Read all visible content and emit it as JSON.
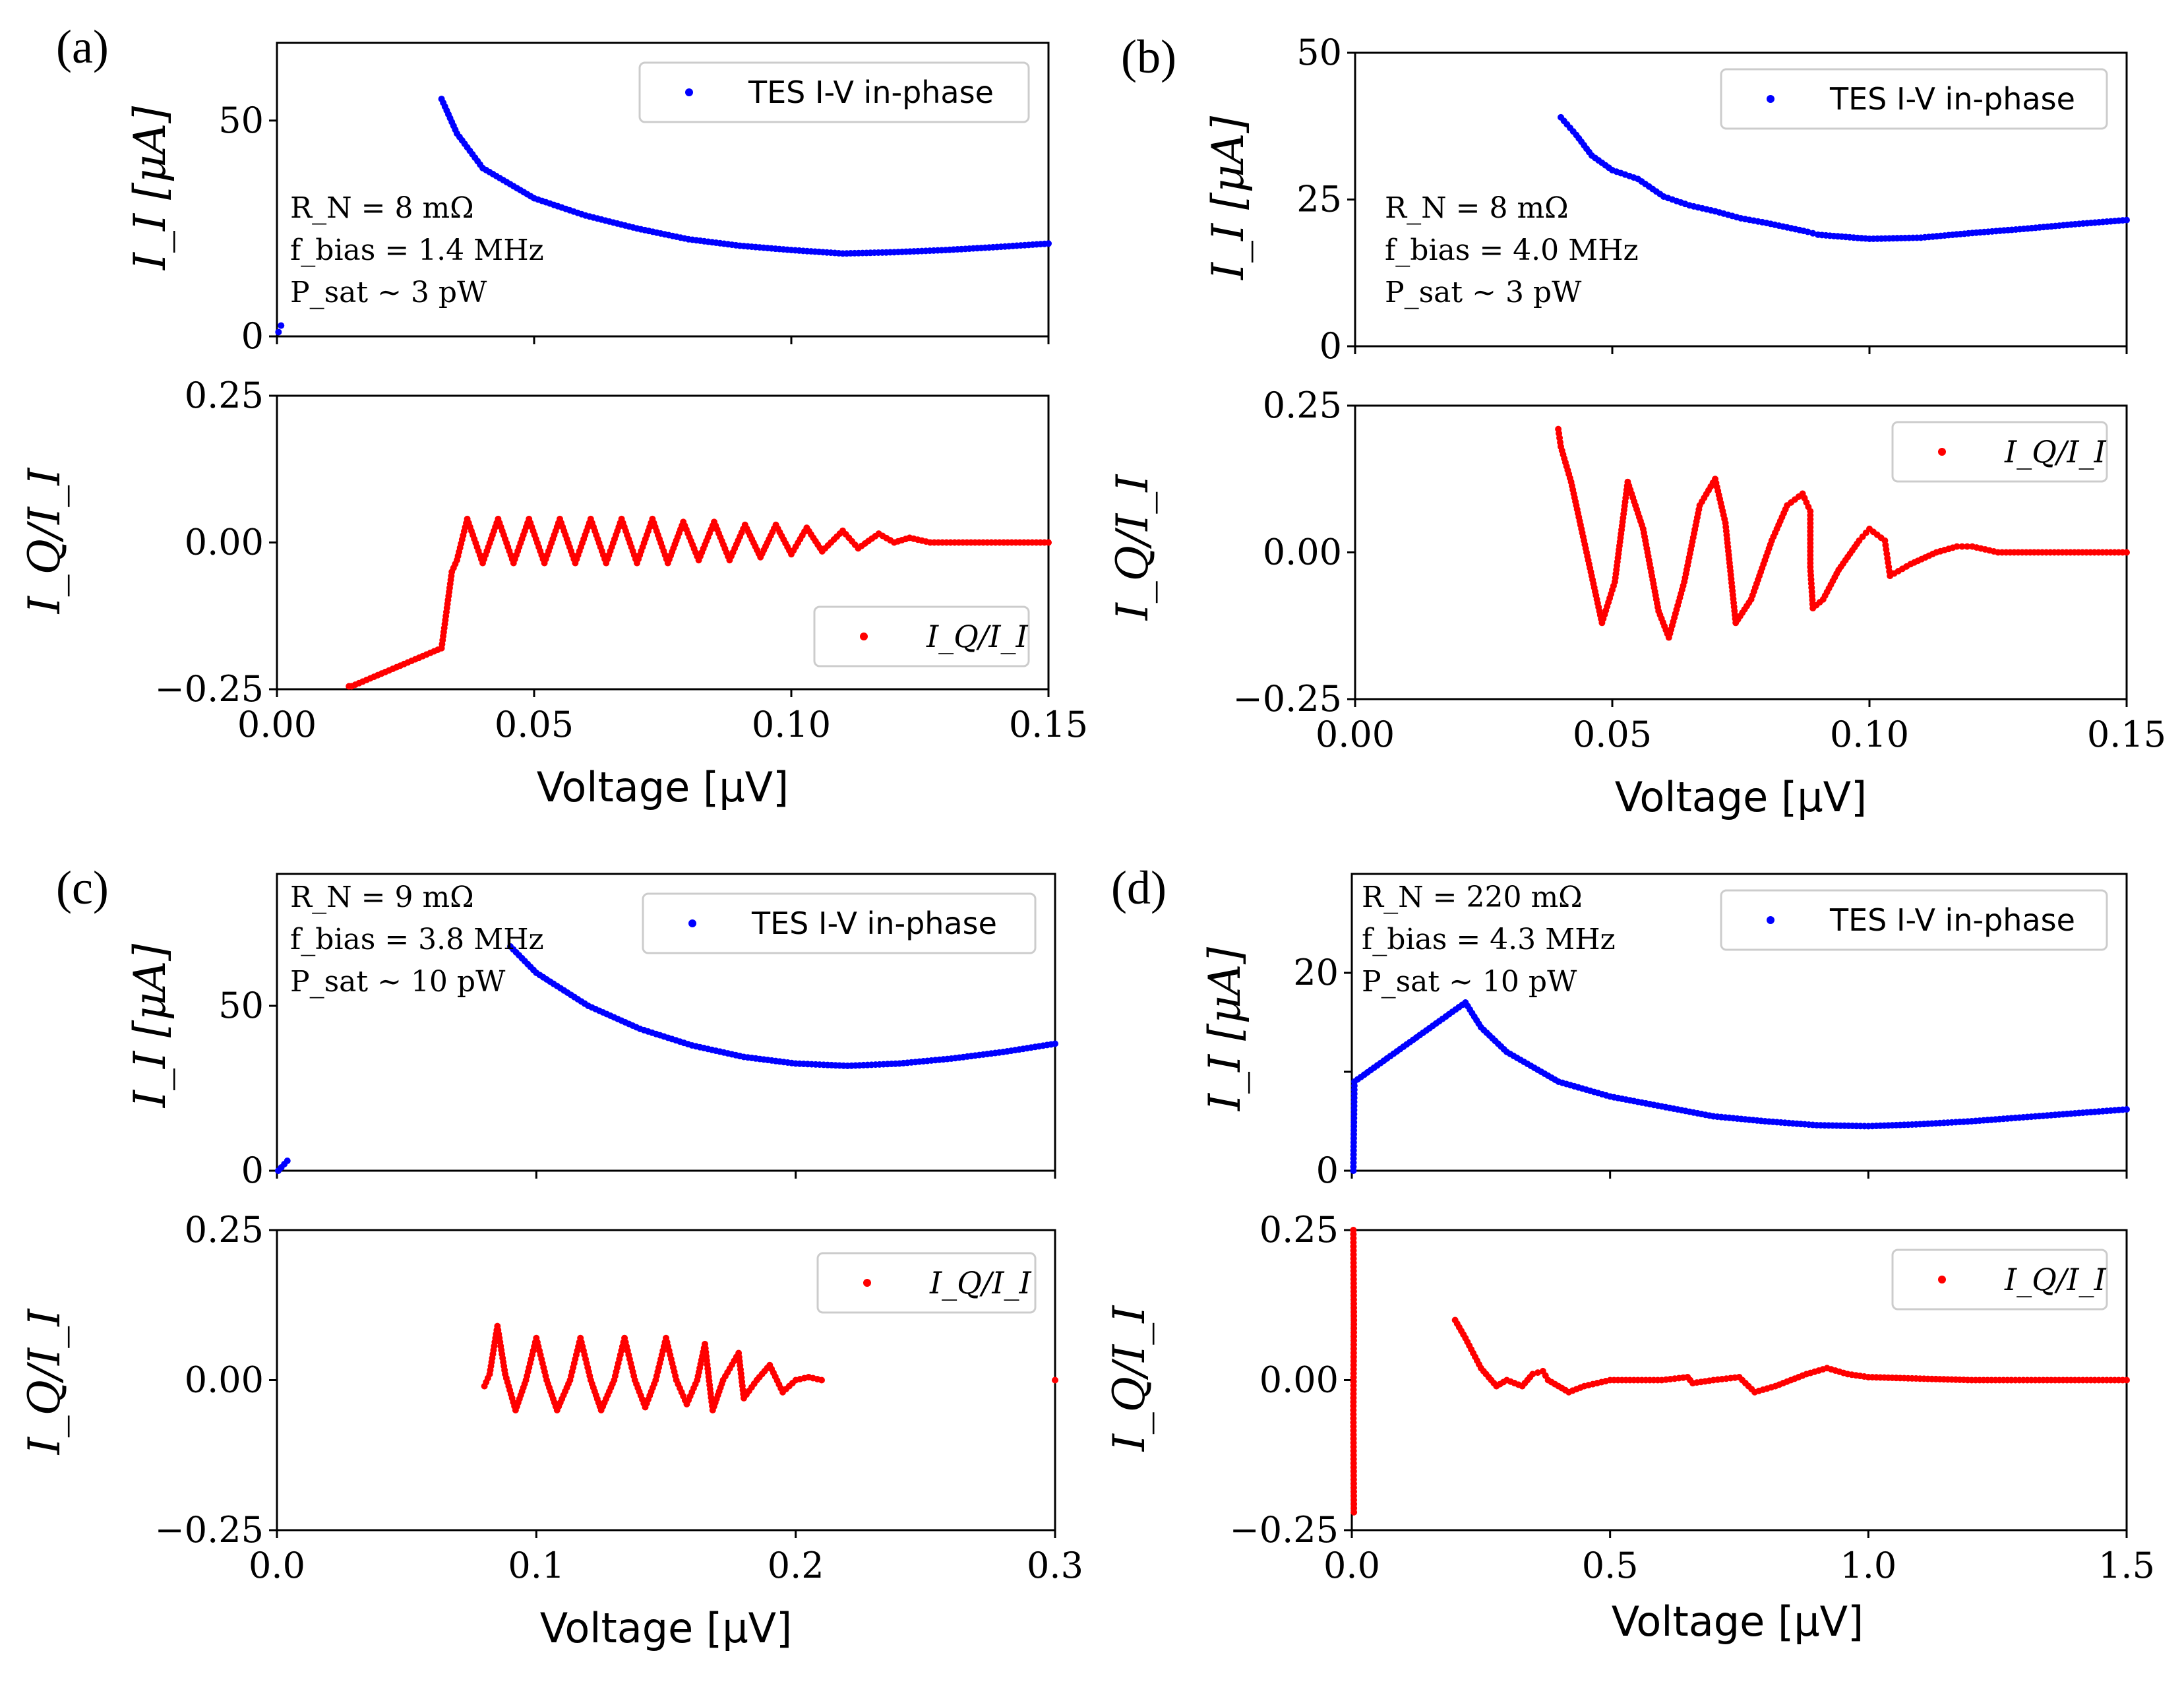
{
  "figure": {
    "panels": [
      {
        "label": "(a)",
        "annotation": [
          "R_N = 8 mΩ",
          "f_bias = 1.4 MHz",
          "P_sat ~ 3 pW"
        ],
        "legend_top": "TES I-V in-phase",
        "legend_bottom": "I_Q/I_I",
        "xlabel": "Voltage [μV]",
        "ylabel_top": "I_I [μA]",
        "ylabel_bottom": "I_Q/I_I"
      },
      {
        "label": "(b)",
        "annotation": [
          "R_N = 8 mΩ",
          "f_bias = 4.0 MHz",
          "P_sat ~ 3 pW"
        ],
        "legend_top": "TES I-V in-phase",
        "legend_bottom": "I_Q/I_I",
        "xlabel": "Voltage [μV]",
        "ylabel_top": "I_I [μA]",
        "ylabel_bottom": "I_Q/I_I"
      },
      {
        "label": "(c)",
        "annotation": [
          "R_N = 9 mΩ",
          "f_bias = 3.8 MHz",
          "P_sat ~ 10 pW"
        ],
        "legend_top": "TES I-V in-phase",
        "legend_bottom": "I_Q/I_I",
        "xlabel": "Voltage [μV]",
        "ylabel_top": "I_I [μA]",
        "ylabel_bottom": "I_Q/I_I"
      },
      {
        "label": "(d)",
        "annotation": [
          "R_N = 220 mΩ",
          "f_bias = 4.3 MHz",
          "P_sat ~ 10 pW"
        ],
        "legend_top": "TES I-V in-phase",
        "legend_bottom": "I_Q/I_I",
        "xlabel": "Voltage [μV]",
        "ylabel_top": "I_I [μA]",
        "ylabel_bottom": "I_Q/I_I"
      }
    ],
    "colors": {
      "in_phase": "#0000ff",
      "ratio": "#ff0000",
      "axis": "#000000",
      "legend_border": "#cccccc"
    }
  },
  "chart_data": [
    {
      "panel": "(a)",
      "type": "scatter",
      "top": {
        "series": "TES I-V in-phase",
        "xlim": [
          0,
          0.15
        ],
        "ylim": [
          0,
          68
        ],
        "yticks": [
          0,
          50
        ],
        "ytick_labels": [
          "0",
          "50"
        ],
        "points": [
          [
            0.0003,
            1
          ],
          [
            0.0008,
            2.5
          ],
          [
            0.032,
            55
          ],
          [
            0.035,
            47
          ],
          [
            0.04,
            39
          ],
          [
            0.05,
            32
          ],
          [
            0.06,
            28
          ],
          [
            0.07,
            25
          ],
          [
            0.08,
            22.5
          ],
          [
            0.09,
            21
          ],
          [
            0.1,
            20
          ],
          [
            0.11,
            19.2
          ],
          [
            0.12,
            19.5
          ],
          [
            0.13,
            20
          ],
          [
            0.14,
            20.7
          ],
          [
            0.15,
            21.5
          ]
        ]
      },
      "bottom": {
        "series": "I_Q/I_I",
        "xlim": [
          0,
          0.15
        ],
        "ylim": [
          -0.25,
          0.25
        ],
        "yticks": [
          -0.25,
          0,
          0.25
        ],
        "ytick_labels": [
          "−0.25",
          "0.00",
          "0.25"
        ],
        "xticks": [
          0,
          0.05,
          0.1,
          0.15
        ],
        "xtick_labels": [
          "0.00",
          "0.05",
          "0.10",
          "0.15"
        ],
        "points": [
          [
            0.014,
            -0.245
          ],
          [
            0.0145,
            -0.245
          ],
          [
            0.032,
            -0.18
          ],
          [
            0.034,
            -0.05
          ],
          [
            0.035,
            -0.03
          ],
          [
            0.037,
            0.04
          ],
          [
            0.04,
            -0.035
          ],
          [
            0.043,
            0.04
          ],
          [
            0.046,
            -0.035
          ],
          [
            0.049,
            0.04
          ],
          [
            0.052,
            -0.035
          ],
          [
            0.055,
            0.04
          ],
          [
            0.058,
            -0.035
          ],
          [
            0.061,
            0.04
          ],
          [
            0.064,
            -0.035
          ],
          [
            0.067,
            0.04
          ],
          [
            0.07,
            -0.035
          ],
          [
            0.073,
            0.04
          ],
          [
            0.076,
            -0.035
          ],
          [
            0.079,
            0.035
          ],
          [
            0.082,
            -0.03
          ],
          [
            0.085,
            0.035
          ],
          [
            0.088,
            -0.03
          ],
          [
            0.091,
            0.03
          ],
          [
            0.094,
            -0.025
          ],
          [
            0.097,
            0.03
          ],
          [
            0.1,
            -0.02
          ],
          [
            0.103,
            0.025
          ],
          [
            0.106,
            -0.015
          ],
          [
            0.11,
            0.02
          ],
          [
            0.113,
            -0.01
          ],
          [
            0.117,
            0.015
          ],
          [
            0.12,
            0.0
          ],
          [
            0.123,
            0.008
          ],
          [
            0.127,
            0.0
          ],
          [
            0.15,
            0.0
          ]
        ]
      }
    },
    {
      "panel": "(b)",
      "type": "scatter",
      "top": {
        "series": "TES I-V in-phase",
        "xlim": [
          0,
          0.15
        ],
        "ylim": [
          0,
          50
        ],
        "yticks": [
          0,
          25,
          50
        ],
        "ytick_labels": [
          "0",
          "25",
          "50"
        ],
        "points": [
          [
            0.04,
            39
          ],
          [
            0.043,
            36
          ],
          [
            0.046,
            32.5
          ],
          [
            0.05,
            30
          ],
          [
            0.055,
            28.5
          ],
          [
            0.06,
            25.5
          ],
          [
            0.065,
            24
          ],
          [
            0.07,
            23
          ],
          [
            0.075,
            21.8
          ],
          [
            0.08,
            21
          ],
          [
            0.088,
            19.5
          ],
          [
            0.09,
            19
          ],
          [
            0.1,
            18.3
          ],
          [
            0.11,
            18.5
          ],
          [
            0.12,
            19.3
          ],
          [
            0.13,
            20
          ],
          [
            0.14,
            20.8
          ],
          [
            0.15,
            21.5
          ]
        ]
      },
      "bottom": {
        "series": "I_Q/I_I",
        "xlim": [
          0,
          0.15
        ],
        "ylim": [
          -0.25,
          0.25
        ],
        "yticks": [
          -0.25,
          0,
          0.25
        ],
        "ytick_labels": [
          "−0.25",
          "0.00",
          "0.25"
        ],
        "xticks": [
          0,
          0.05,
          0.1,
          0.15
        ],
        "xtick_labels": [
          "0.00",
          "0.05",
          "0.10",
          "0.15"
        ],
        "points": [
          [
            0.0395,
            0.21
          ],
          [
            0.04,
            0.18
          ],
          [
            0.042,
            0.12
          ],
          [
            0.045,
            0.0
          ],
          [
            0.048,
            -0.12
          ],
          [
            0.0505,
            -0.05
          ],
          [
            0.053,
            0.12
          ],
          [
            0.056,
            0.04
          ],
          [
            0.059,
            -0.1
          ],
          [
            0.061,
            -0.145
          ],
          [
            0.064,
            -0.05
          ],
          [
            0.067,
            0.08
          ],
          [
            0.07,
            0.125
          ],
          [
            0.072,
            0.05
          ],
          [
            0.074,
            -0.12
          ],
          [
            0.077,
            -0.08
          ],
          [
            0.081,
            0.02
          ],
          [
            0.084,
            0.08
          ],
          [
            0.087,
            0.1
          ],
          [
            0.0885,
            0.07
          ],
          [
            0.0885,
            -0.025
          ],
          [
            0.089,
            -0.095
          ],
          [
            0.091,
            -0.08
          ],
          [
            0.094,
            -0.03
          ],
          [
            0.098,
            0.02
          ],
          [
            0.1,
            0.04
          ],
          [
            0.103,
            0.02
          ],
          [
            0.104,
            -0.04
          ],
          [
            0.108,
            -0.02
          ],
          [
            0.113,
            0.0
          ],
          [
            0.117,
            0.01
          ],
          [
            0.12,
            0.01
          ],
          [
            0.125,
            0.0
          ],
          [
            0.15,
            0.0
          ]
        ]
      }
    },
    {
      "panel": "(c)",
      "type": "scatter",
      "top": {
        "series": "TES I-V in-phase",
        "xlim": [
          0,
          0.3
        ],
        "ylim": [
          0,
          90
        ],
        "yticks": [
          0,
          50
        ],
        "ytick_labels": [
          "0",
          "50"
        ],
        "points": [
          [
            0.0005,
            0
          ],
          [
            0.004,
            3
          ],
          [
            0.09,
            68
          ],
          [
            0.1,
            60
          ],
          [
            0.12,
            50
          ],
          [
            0.14,
            43
          ],
          [
            0.16,
            38
          ],
          [
            0.18,
            34.5
          ],
          [
            0.2,
            32.5
          ],
          [
            0.22,
            31.8
          ],
          [
            0.24,
            32.5
          ],
          [
            0.26,
            34
          ],
          [
            0.28,
            36
          ],
          [
            0.3,
            38.5
          ]
        ]
      },
      "bottom": {
        "series": "I_Q/I_I",
        "xlim": [
          0,
          0.3
        ],
        "ylim": [
          -0.25,
          0.25
        ],
        "yticks": [
          -0.25,
          0,
          0.25
        ],
        "ytick_labels": [
          "−0.25",
          "0.00",
          "0.25"
        ],
        "xticks": [
          0,
          0.1,
          0.2,
          0.3
        ],
        "xtick_labels": [
          "0.0",
          "0.1",
          "0.2",
          "0.3"
        ],
        "points": [
          [
            0.08,
            -0.01
          ],
          [
            0.082,
            0.01
          ],
          [
            0.085,
            0.09
          ],
          [
            0.088,
            0.01
          ],
          [
            0.092,
            -0.05
          ],
          [
            0.096,
            0.0
          ],
          [
            0.1,
            0.07
          ],
          [
            0.104,
            0.0
          ],
          [
            0.108,
            -0.05
          ],
          [
            0.113,
            0.0
          ],
          [
            0.117,
            0.07
          ],
          [
            0.121,
            0.0
          ],
          [
            0.125,
            -0.05
          ],
          [
            0.13,
            0.0
          ],
          [
            0.134,
            0.07
          ],
          [
            0.138,
            0.0
          ],
          [
            0.142,
            -0.045
          ],
          [
            0.146,
            0.0
          ],
          [
            0.15,
            0.07
          ],
          [
            0.154,
            0.0
          ],
          [
            0.158,
            -0.04
          ],
          [
            0.162,
            0.0
          ],
          [
            0.165,
            0.06
          ],
          [
            0.167,
            -0.015
          ],
          [
            0.168,
            -0.05
          ],
          [
            0.172,
            0.0
          ],
          [
            0.178,
            0.045
          ],
          [
            0.18,
            -0.03
          ],
          [
            0.185,
            0.0
          ],
          [
            0.19,
            0.025
          ],
          [
            0.195,
            -0.02
          ],
          [
            0.2,
            0.0
          ],
          [
            0.205,
            0.005
          ],
          [
            0.21,
            0.0
          ],
          [
            0.3,
            0.0
          ]
        ]
      }
    },
    {
      "panel": "(d)",
      "type": "scatter",
      "top": {
        "series": "TES I-V in-phase",
        "xlim": [
          0,
          1.5
        ],
        "ylim": [
          0,
          30
        ],
        "yticks": [
          0,
          10,
          20
        ],
        "ytick_labels": [
          "0",
          "",
          "20"
        ],
        "points": [
          [
            0.003,
            0
          ],
          [
            0.005,
            9
          ],
          [
            0.22,
            17
          ],
          [
            0.25,
            14.5
          ],
          [
            0.3,
            12
          ],
          [
            0.4,
            9
          ],
          [
            0.5,
            7.5
          ],
          [
            0.6,
            6.5
          ],
          [
            0.7,
            5.5
          ],
          [
            0.8,
            5
          ],
          [
            0.9,
            4.6
          ],
          [
            1.0,
            4.5
          ],
          [
            1.1,
            4.7
          ],
          [
            1.2,
            5
          ],
          [
            1.3,
            5.4
          ],
          [
            1.4,
            5.8
          ],
          [
            1.5,
            6.2
          ]
        ]
      },
      "bottom": {
        "series": "I_Q/I_I",
        "xlim": [
          0,
          1.5
        ],
        "ylim": [
          -0.25,
          0.25
        ],
        "yticks": [
          -0.25,
          0,
          0.25
        ],
        "ytick_labels": [
          "−0.25",
          "0.00",
          "0.25"
        ],
        "xticks": [
          0,
          0.5,
          1.0,
          1.5
        ],
        "xtick_labels": [
          "0.0",
          "0.5",
          "1.0",
          "1.5"
        ],
        "points": [
          [
            0.003,
            0.25
          ],
          [
            0.004,
            0.1
          ],
          [
            0.003,
            -0.05
          ],
          [
            0.004,
            -0.22
          ],
          [
            0.2,
            0.1
          ],
          [
            0.22,
            0.07
          ],
          [
            0.25,
            0.02
          ],
          [
            0.28,
            -0.01
          ],
          [
            0.3,
            0.0
          ],
          [
            0.33,
            -0.01
          ],
          [
            0.35,
            0.01
          ],
          [
            0.37,
            0.015
          ],
          [
            0.38,
            0.0
          ],
          [
            0.4,
            -0.01
          ],
          [
            0.42,
            -0.02
          ],
          [
            0.45,
            -0.01
          ],
          [
            0.5,
            0.0
          ],
          [
            0.6,
            0.0
          ],
          [
            0.65,
            0.005
          ],
          [
            0.66,
            -0.005
          ],
          [
            0.7,
            0.0
          ],
          [
            0.75,
            0.005
          ],
          [
            0.78,
            -0.02
          ],
          [
            0.82,
            -0.01
          ],
          [
            0.88,
            0.01
          ],
          [
            0.92,
            0.02
          ],
          [
            0.96,
            0.01
          ],
          [
            1.0,
            0.005
          ],
          [
            1.2,
            0.0
          ],
          [
            1.5,
            0.0
          ]
        ]
      }
    }
  ]
}
